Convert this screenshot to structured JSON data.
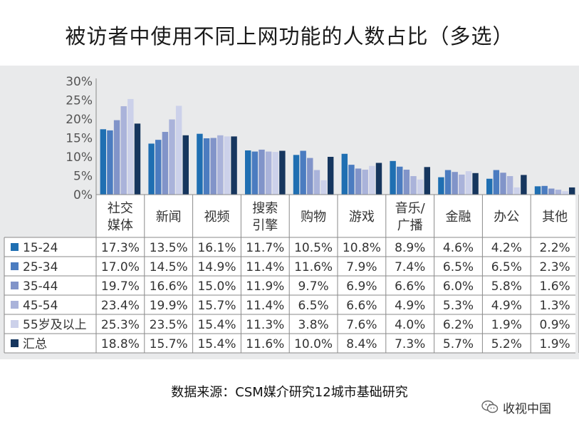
{
  "page": {
    "title": "被访者中使用不同上网功能的人数占比（多选）",
    "source": "数据来源：CSM媒介研究12城市基础研究",
    "brand": "收视中国"
  },
  "chart_data": {
    "type": "bar",
    "title": "被访者中使用不同上网功能的人数占比（多选）",
    "xlabel": "",
    "ylabel": "",
    "ylim": [
      0,
      30
    ],
    "yticks": [
      "0%",
      "5%",
      "10%",
      "15%",
      "20%",
      "25%",
      "30%"
    ],
    "categories": [
      [
        "社交",
        "媒体"
      ],
      [
        "新闻"
      ],
      [
        "视频"
      ],
      [
        "搜索",
        "引擎"
      ],
      [
        "购物"
      ],
      [
        "游戏"
      ],
      [
        "音乐/",
        "广播"
      ],
      [
        "金融"
      ],
      [
        "办公"
      ],
      [
        "其他"
      ]
    ],
    "series": [
      {
        "name": "15-24",
        "color": "#1f6fb2",
        "values": [
          17.3,
          13.5,
          16.1,
          11.7,
          10.5,
          10.8,
          8.9,
          4.6,
          4.2,
          2.2
        ],
        "labels": [
          "17.3%",
          "13.5%",
          "16.1%",
          "11.7%",
          "10.5%",
          "10.8%",
          "8.9%",
          "4.6%",
          "4.2%",
          "2.2%"
        ]
      },
      {
        "name": "25-34",
        "color": "#4b7cc0",
        "values": [
          17.0,
          14.5,
          14.9,
          11.4,
          11.6,
          7.9,
          7.4,
          6.5,
          6.5,
          2.3
        ],
        "labels": [
          "17.0%",
          "14.5%",
          "14.9%",
          "11.4%",
          "11.6%",
          "7.9%",
          "7.4%",
          "6.5%",
          "6.5%",
          "2.3%"
        ]
      },
      {
        "name": "35-44",
        "color": "#8194c9",
        "values": [
          19.7,
          16.6,
          15.0,
          11.9,
          9.7,
          6.9,
          6.6,
          6.0,
          5.8,
          1.6
        ],
        "labels": [
          "19.7%",
          "16.6%",
          "15.0%",
          "11.9%",
          "9.7%",
          "6.9%",
          "6.6%",
          "6.0%",
          "5.8%",
          "1.6%"
        ]
      },
      {
        "name": "45-54",
        "color": "#aab3da",
        "values": [
          23.4,
          19.9,
          15.7,
          11.4,
          6.5,
          6.6,
          4.9,
          5.3,
          4.9,
          1.3
        ],
        "labels": [
          "23.4%",
          "19.9%",
          "15.7%",
          "11.4%",
          "6.5%",
          "6.6%",
          "4.9%",
          "5.3%",
          "4.9%",
          "1.3%"
        ]
      },
      {
        "name": "55岁及以上",
        "color": "#ccd1ea",
        "values": [
          25.3,
          23.5,
          15.4,
          11.3,
          3.8,
          7.6,
          4.0,
          6.2,
          1.9,
          0.9
        ],
        "labels": [
          "25.3%",
          "23.5%",
          "15.4%",
          "11.3%",
          "3.8%",
          "7.6%",
          "4.0%",
          "6.2%",
          "1.9%",
          "0.9%"
        ]
      },
      {
        "name": "汇总",
        "color": "#16365e",
        "values": [
          18.8,
          15.7,
          15.4,
          11.6,
          10.0,
          8.4,
          7.3,
          5.7,
          5.2,
          1.9
        ],
        "labels": [
          "18.8%",
          "15.7%",
          "15.4%",
          "11.6%",
          "10.0%",
          "8.4%",
          "7.3%",
          "5.7%",
          "5.2%",
          "1.9%"
        ]
      }
    ],
    "grid": false,
    "legend": "table-left"
  },
  "colors": {
    "panel_bg": "#e9eaeb",
    "table_line": "#8a8a8a",
    "text": "#333333"
  }
}
